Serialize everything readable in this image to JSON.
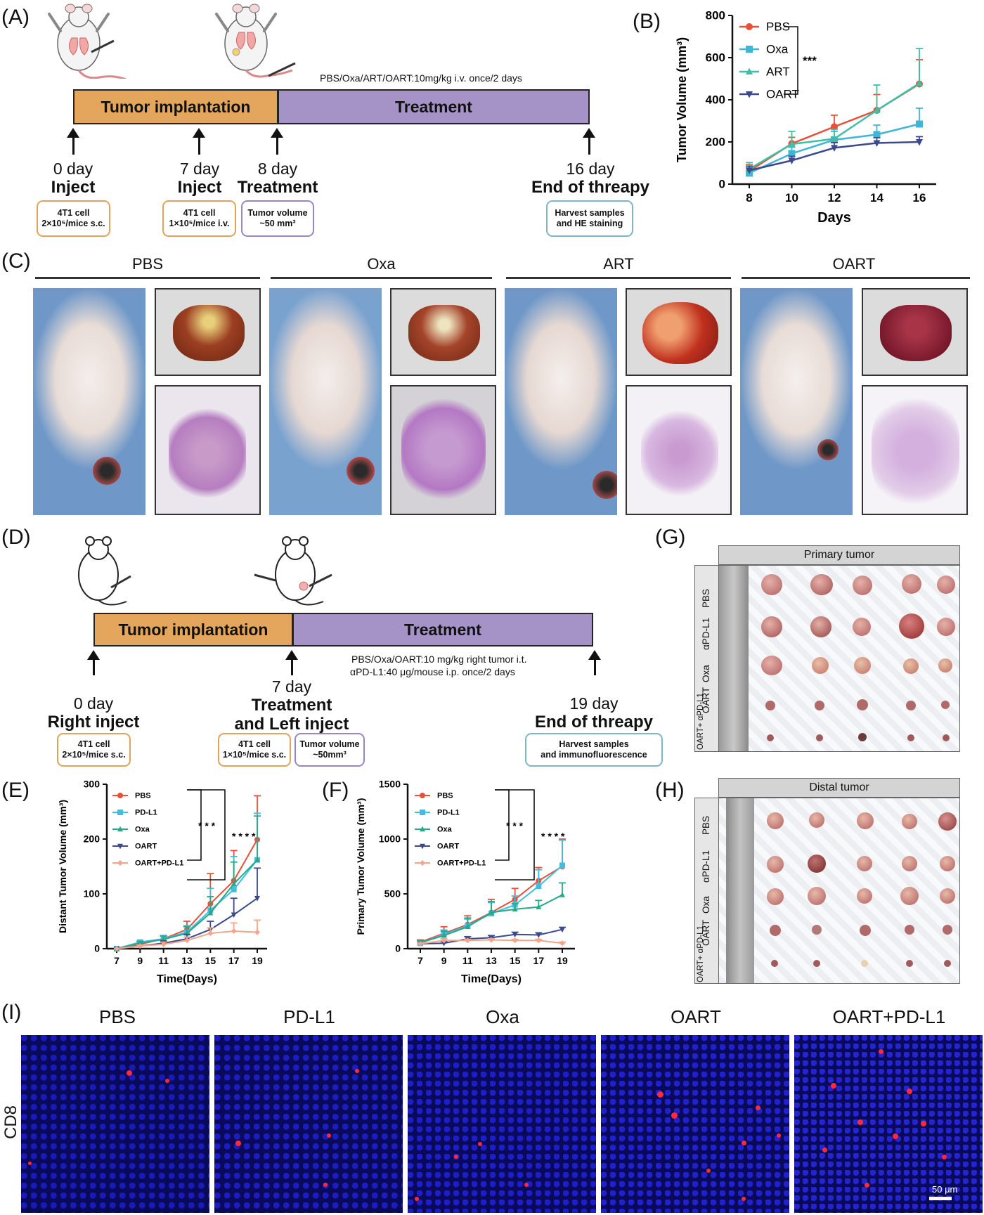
{
  "panels": {
    "a": "(A)",
    "b": "(B)",
    "c": "(C)",
    "d": "(D)",
    "e": "(E)",
    "f": "(F)",
    "g": "(G)",
    "h": "(H)",
    "i": "(I)"
  },
  "panel_a": {
    "dose_text": "PBS/Oxa/ART/OART:10mg/kg i.v. once/2 days",
    "bar_left": "Tumor implantation",
    "bar_right": "Treatment",
    "events": [
      {
        "day": "0 day",
        "label": "Inject",
        "box": [
          "4T1 cell",
          "2×10⁵/mice s.c."
        ]
      },
      {
        "day": "7 day",
        "label": "Inject",
        "box": [
          "4T1 cell",
          "1×10⁵/mice i.v."
        ]
      },
      {
        "day": "8 day",
        "label": "Treatment",
        "box": [
          "Tumor volume",
          "~50 mm³"
        ]
      },
      {
        "day": "16 day",
        "label": "End of threapy",
        "box": [
          "Harvest samples",
          "and HE staining"
        ]
      }
    ]
  },
  "panel_c": {
    "groups": [
      "PBS",
      "Oxa",
      "ART",
      "OART"
    ]
  },
  "panel_d": {
    "bar_left": "Tumor implantation",
    "bar_right": "Treatment",
    "dose_line1": "PBS/Oxa/OART:10 mg/kg right tumor i.t.",
    "dose_line2": "αPD-L1:40 μg/mouse i.p. once/2 days",
    "events": [
      {
        "day": "0 day",
        "label": "Right inject",
        "box": [
          "4T1 cell",
          "2×10⁵/mice s.c."
        ]
      },
      {
        "day": "7 day",
        "label1": "Treatment",
        "label2": "and Left inject",
        "box": [
          "4T1 cell",
          "1×10⁵/mice s.c."
        ],
        "box2": [
          "Tumor volume",
          "~50mm³"
        ]
      },
      {
        "day": "19 day",
        "label": "End of threapy",
        "box": [
          "Harvest samples",
          "and immunofluorescence"
        ]
      }
    ]
  },
  "panel_g": {
    "header": "Primary tumor",
    "rows": [
      "PBS",
      "αPD-L1",
      "Oxa",
      "OART",
      "OART+\nαPD-L1"
    ]
  },
  "panel_h": {
    "header": "Distal tumor",
    "rows": [
      "PBS",
      "αPD-L1",
      "Oxa",
      "OART",
      "OART+\nαPD-L1"
    ]
  },
  "panel_i": {
    "titles": [
      "PBS",
      "PD-L1",
      "Oxa",
      "OART",
      "OART+PD-L1"
    ],
    "row_label": "CD8",
    "scale_bar": "50 μm"
  },
  "colors": {
    "pbs": "#e8503a",
    "oxa_b": "#3fb6d6",
    "art": "#3fbfa6",
    "oart": "#3a4a8c",
    "pdl1": "#42bde0",
    "oxa_ef": "#29a888",
    "oart_pdl1": "#f4a58a"
  },
  "chart_data": [
    {
      "id": "B",
      "type": "line",
      "x": [
        8,
        10,
        12,
        14,
        16
      ],
      "xlabel": "Days",
      "ylabel": "Tumor Volume (mm³)",
      "ylim": [
        0,
        800
      ],
      "yticks": [
        0,
        200,
        400,
        600,
        800
      ],
      "significance": "***",
      "legend_position": "top-left",
      "series": [
        {
          "name": "PBS",
          "values": [
            62,
            192,
            272,
            350,
            475
          ],
          "err": [
            30,
            30,
            55,
            75,
            115
          ]
        },
        {
          "name": "Oxa",
          "values": [
            52,
            145,
            210,
            235,
            285
          ],
          "err": [
            25,
            30,
            40,
            45,
            75
          ]
        },
        {
          "name": "ART",
          "values": [
            72,
            190,
            215,
            350,
            478
          ],
          "err": [
            30,
            60,
            45,
            120,
            165
          ]
        },
        {
          "name": "OART",
          "values": [
            65,
            112,
            172,
            195,
            200
          ],
          "err": [
            20,
            20,
            25,
            25,
            25
          ]
        }
      ]
    },
    {
      "id": "E",
      "type": "line",
      "x": [
        7,
        9,
        11,
        13,
        15,
        17,
        19
      ],
      "xlabel": "Time(Days)",
      "ylabel": "Distant Tumor Volume (mm³)",
      "ylim": [
        0,
        300
      ],
      "yticks": [
        0,
        100,
        200,
        300
      ],
      "significance": [
        "* * *",
        "* * * *"
      ],
      "legend_position": "top-left",
      "series": [
        {
          "name": "PBS",
          "values": [
            0,
            8,
            18,
            35,
            82,
            124,
            199
          ],
          "err": [
            0,
            3,
            6,
            15,
            55,
            55,
            80
          ]
        },
        {
          "name": "PD-L1",
          "values": [
            0,
            12,
            18,
            30,
            70,
            108,
            162
          ],
          "err": [
            0,
            3,
            6,
            12,
            40,
            60,
            85
          ]
        },
        {
          "name": "Oxa",
          "values": [
            0,
            10,
            17,
            28,
            65,
            118,
            162
          ],
          "err": [
            0,
            3,
            6,
            12,
            30,
            40,
            80
          ]
        },
        {
          "name": "OART",
          "values": [
            0,
            5,
            10,
            18,
            35,
            62,
            92
          ],
          "err": [
            0,
            2,
            4,
            8,
            15,
            30,
            55
          ]
        },
        {
          "name": "OART+PD-L1",
          "values": [
            0,
            5,
            8,
            15,
            28,
            32,
            30
          ],
          "err": [
            0,
            2,
            4,
            6,
            10,
            15,
            22
          ]
        }
      ]
    },
    {
      "id": "F",
      "type": "line",
      "x": [
        7,
        9,
        11,
        13,
        15,
        17,
        19
      ],
      "xlabel": "Time(Days)",
      "ylabel": "Primary Tumor Volume (mm³)",
      "ylim": [
        0,
        1500
      ],
      "yticks": [
        0,
        500,
        1000,
        1500
      ],
      "significance": [
        "* * *",
        "* * * *"
      ],
      "legend_position": "top-left",
      "series": [
        {
          "name": "PBS",
          "values": [
            60,
            140,
            220,
            330,
            450,
            620,
            750
          ],
          "err": [
            20,
            60,
            80,
            120,
            100,
            120,
            250
          ]
        },
        {
          "name": "PD-L1",
          "values": [
            50,
            130,
            210,
            320,
            400,
            570,
            760
          ],
          "err": [
            20,
            40,
            60,
            100,
            80,
            150,
            230
          ]
        },
        {
          "name": "Oxa",
          "values": [
            55,
            120,
            200,
            330,
            360,
            380,
            490
          ],
          "err": [
            20,
            40,
            80,
            100,
            50,
            60,
            110
          ]
        },
        {
          "name": "OART",
          "values": [
            45,
            50,
            90,
            100,
            130,
            125,
            175
          ],
          "err": [
            10,
            15,
            20,
            20,
            20,
            20,
            20
          ]
        },
        {
          "name": "OART+PD-L1",
          "values": [
            45,
            75,
            75,
            80,
            75,
            75,
            50
          ],
          "err": [
            10,
            15,
            10,
            10,
            10,
            10,
            10
          ]
        }
      ]
    }
  ]
}
